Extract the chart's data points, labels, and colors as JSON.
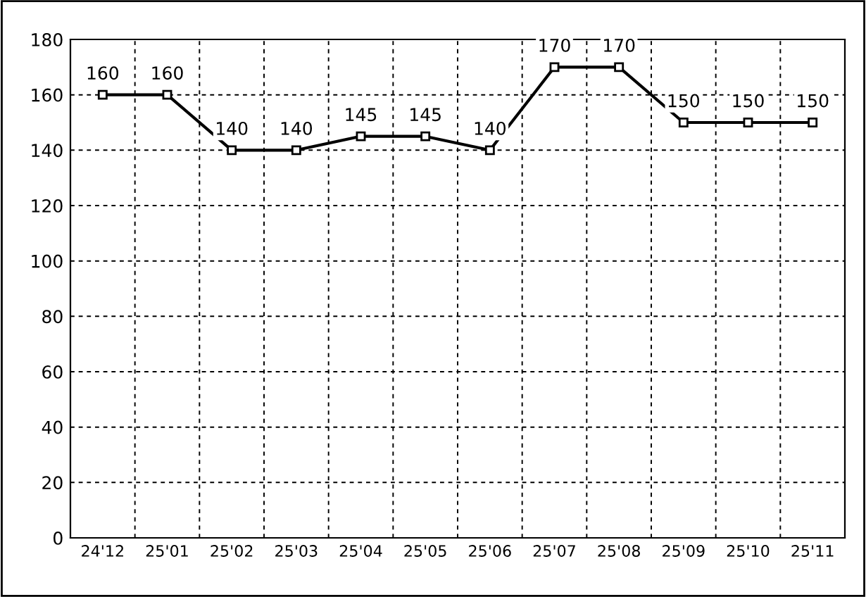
{
  "chart_data": {
    "type": "line",
    "categories": [
      "24'12",
      "25'01",
      "25'02",
      "25'03",
      "25'04",
      "25'05",
      "25'06",
      "25'07",
      "25'08",
      "25'09",
      "25'10",
      "25'11"
    ],
    "series": [
      {
        "color": "#000000",
        "values": [
          160,
          160,
          140,
          140,
          145,
          145,
          140,
          170,
          170,
          150,
          150,
          150
        ]
      }
    ],
    "ylim": [
      0,
      180
    ],
    "yticks": [
      0,
      20,
      40,
      60,
      80,
      100,
      120,
      140,
      160,
      180
    ],
    "grid": true,
    "marker": "square",
    "line_style": "solid",
    "data_labels": true,
    "legend": false
  }
}
